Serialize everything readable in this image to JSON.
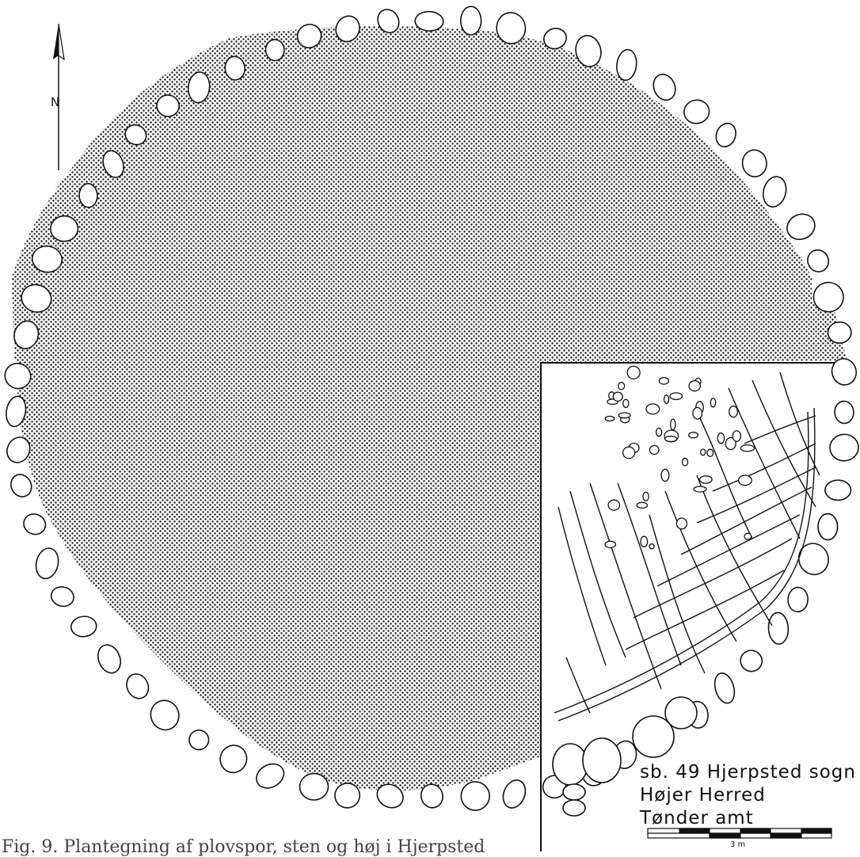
{
  "north_arrow": {
    "letter": "N",
    "icon": "north-arrow-icon"
  },
  "site_label": {
    "line1": "sb. 49 Hjerpsted sogn",
    "line2": "Højer Herred",
    "line3": "Tønder amt"
  },
  "scale_bar": {
    "label": "3 m"
  },
  "caption": "Fig. 9. Plantegning af plovspor, sten og høj i Hjerpsted",
  "colors": {
    "ink": "#111111",
    "paper": "#ffffff"
  }
}
